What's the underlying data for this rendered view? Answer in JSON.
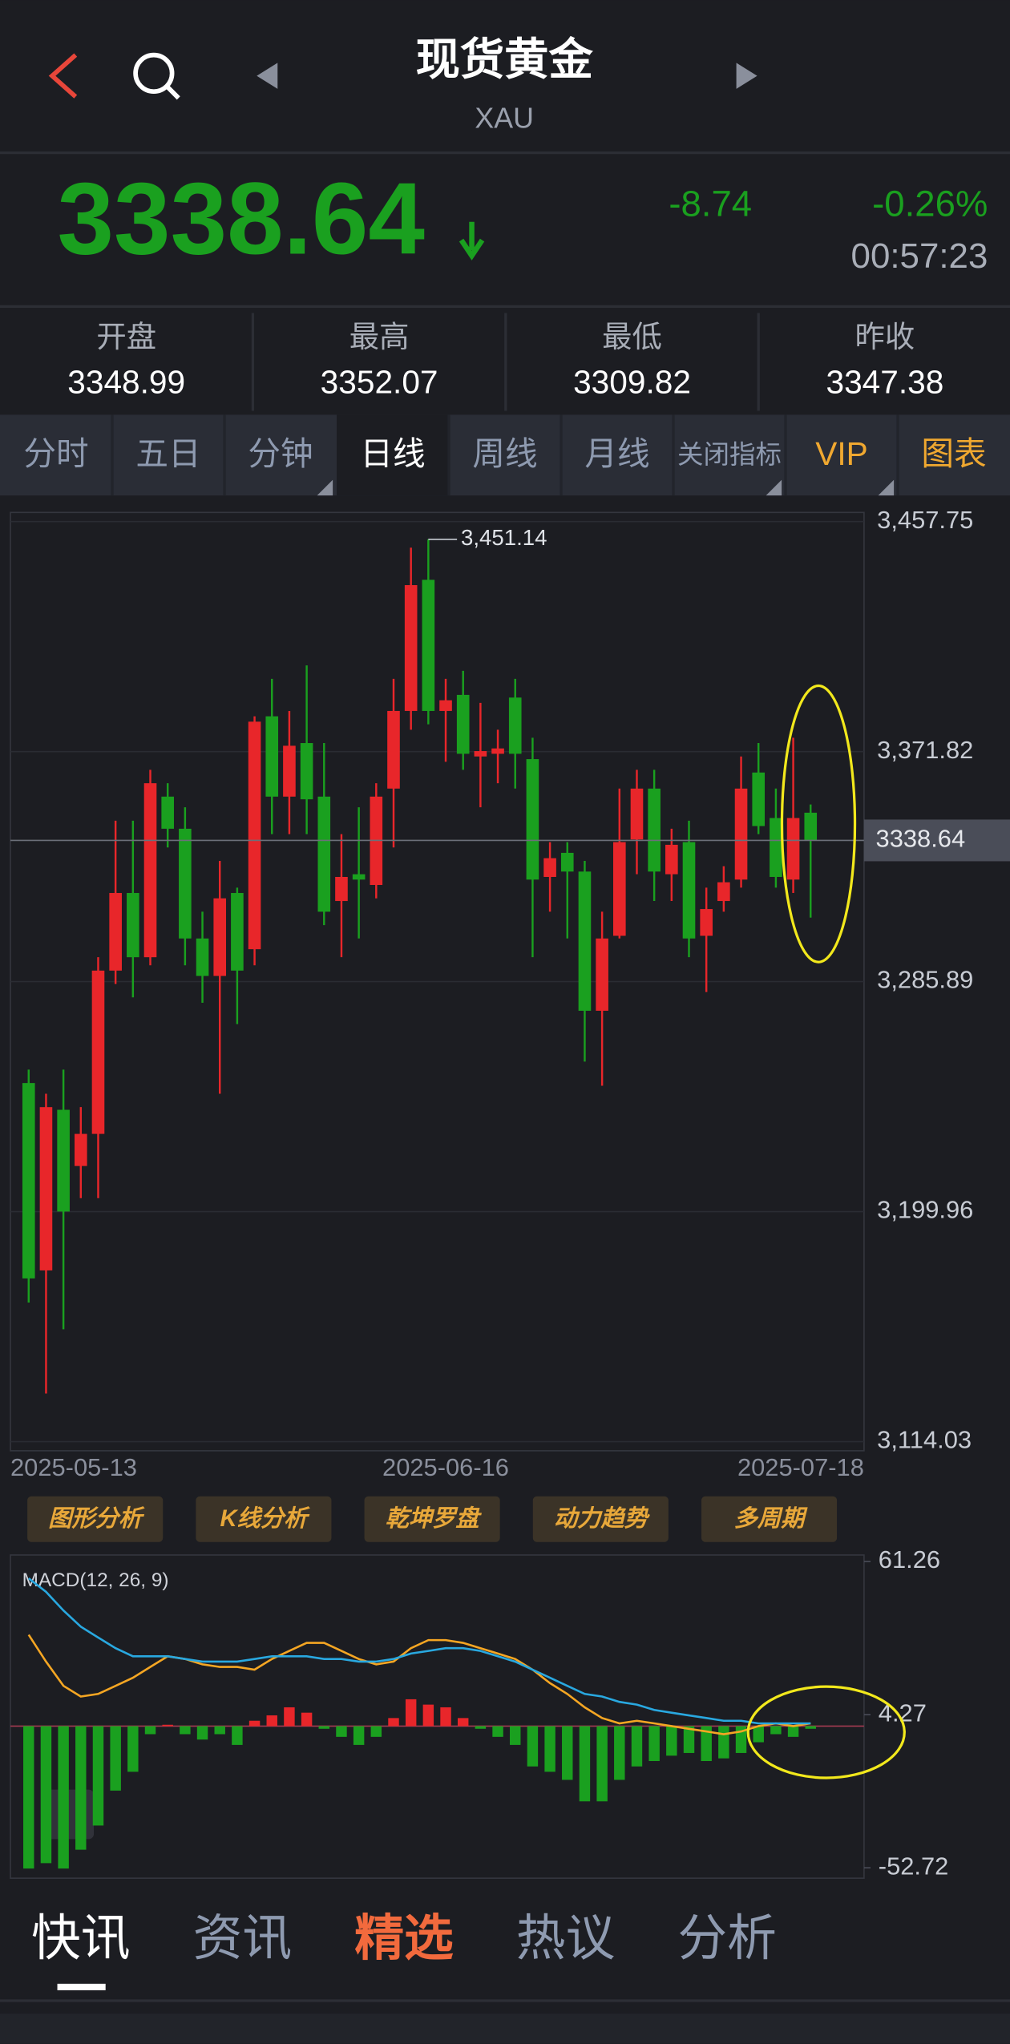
{
  "header": {
    "title": "现货黄金",
    "subtitle": "XAU"
  },
  "quote": {
    "price": "3338.64",
    "change": "-8.74",
    "change_pct": "-0.26%",
    "time": "00:57:23"
  },
  "stats": [
    {
      "label": "开盘",
      "value": "3348.99"
    },
    {
      "label": "最高",
      "value": "3352.07"
    },
    {
      "label": "最低",
      "value": "3309.82"
    },
    {
      "label": "昨收",
      "value": "3347.38"
    }
  ],
  "period_tabs": [
    "分时",
    "五日",
    "分钟",
    "日线",
    "周线",
    "月线",
    "关闭指标",
    "VIP",
    "图表"
  ],
  "chart_data": [
    {
      "type": "candlestick",
      "up_color": "#e8262a",
      "down_color": "#1aa01f",
      "categories": [
        "2025-05-13",
        null,
        null,
        null,
        null,
        null,
        null,
        null,
        null,
        null,
        null,
        null,
        null,
        null,
        null,
        null,
        null,
        null,
        null,
        null,
        null,
        null,
        null,
        null,
        "2025-06-16",
        null,
        null,
        null,
        null,
        null,
        null,
        null,
        null,
        null,
        null,
        null,
        null,
        null,
        null,
        null,
        null,
        null,
        null,
        null,
        null,
        "2025-07-18"
      ],
      "open": [
        3248,
        3178,
        3238,
        3217,
        3229,
        3290,
        3319,
        3295,
        3355,
        3343,
        3302,
        3288,
        3319,
        3298,
        3385,
        3355,
        3375,
        3355,
        3316,
        3326,
        3322,
        3358,
        3387,
        3436,
        3387,
        3393,
        3370,
        3371,
        3392,
        3369,
        3325,
        3334,
        3327,
        3275,
        3303,
        3339,
        3358,
        3326,
        3338,
        3303,
        3316,
        3324,
        3364,
        3347,
        3324,
        3348.99
      ],
      "high": [
        3253,
        3244,
        3253,
        3239,
        3295,
        3346,
        3346,
        3365,
        3360,
        3351,
        3312,
        3331,
        3321,
        3385,
        3399,
        3387,
        3404,
        3375,
        3341,
        3351,
        3360,
        3399,
        3448,
        3451.14,
        3399,
        3402,
        3390,
        3380,
        3399,
        3377,
        3338,
        3338,
        3331,
        3312,
        3358,
        3365,
        3365,
        3343,
        3346,
        3321,
        3329,
        3370,
        3375,
        3358,
        3377,
        3352.07
      ],
      "low": [
        3166,
        3132,
        3156,
        3205,
        3205,
        3285,
        3280,
        3292,
        3336,
        3292,
        3278,
        3244,
        3270,
        3292,
        3341,
        3341,
        3341,
        3307,
        3295,
        3302,
        3317,
        3336,
        3380,
        3382,
        3368,
        3365,
        3351,
        3360,
        3358,
        3295,
        3312,
        3302,
        3256,
        3247,
        3302,
        3326,
        3316,
        3316,
        3295,
        3282,
        3312,
        3321,
        3341,
        3321,
        3319,
        3309.82
      ],
      "close": [
        3175,
        3239,
        3200,
        3229,
        3290,
        3319,
        3295,
        3360,
        3343,
        3302,
        3288,
        3317,
        3290,
        3383,
        3355,
        3374,
        3354,
        3312,
        3325,
        3324,
        3355,
        3387,
        3434,
        3387,
        3391,
        3371,
        3372,
        3373,
        3371,
        3324,
        3332,
        3327,
        3275,
        3302,
        3338,
        3358,
        3327,
        3337,
        3302,
        3313,
        3323,
        3358,
        3344,
        3325,
        3347,
        3338.64
      ],
      "high_labels": [
        null,
        null,
        null,
        null,
        null,
        null,
        null,
        null,
        null,
        null,
        null,
        null,
        null,
        null,
        null,
        null,
        null,
        null,
        null,
        null,
        null,
        null,
        null,
        "3,451.14",
        null,
        null,
        null,
        null,
        null,
        null,
        null,
        null,
        null,
        null,
        null,
        null,
        null,
        null,
        null,
        null,
        null,
        null,
        null,
        null,
        null,
        null
      ],
      "ylim": [
        3114.03,
        3457.75
      ],
      "yticks": [
        {
          "value": 3457.75,
          "label": "3,457.75"
        },
        {
          "value": 3371.82,
          "label": "3,371.82"
        },
        {
          "value": 3285.89,
          "label": "3,285.89"
        },
        {
          "value": 3199.96,
          "label": "3,199.96"
        },
        {
          "value": 3114.03,
          "label": "3,114.03"
        }
      ],
      "grid": true
    },
    {
      "type": "macd",
      "title": "MACD(12, 26, 9)",
      "up_color": "#e8262a",
      "down_color": "#1aa01f",
      "values": [
        -53,
        -51,
        -53,
        -46,
        -37,
        -24,
        -17,
        -3,
        0.5,
        -3,
        -5,
        -3,
        -7,
        2,
        4,
        7,
        5,
        -1,
        -4,
        -7,
        -4,
        3,
        10,
        8,
        7,
        3,
        -1,
        -4,
        -7,
        -15,
        -17,
        -20,
        -28,
        -28,
        -20,
        -15,
        -13,
        -11,
        -10,
        -13,
        -12,
        -10,
        -6,
        -3,
        -4,
        -1
      ],
      "series": [
        {
          "color": "#f5a623",
          "values": [
            34,
            24,
            15,
            11,
            12,
            15,
            18,
            22,
            26,
            25,
            23,
            22,
            22,
            21,
            25,
            28,
            31,
            31,
            28,
            25,
            23,
            24,
            29,
            32,
            32,
            31,
            29,
            27,
            25,
            21,
            16,
            12,
            7,
            3,
            1,
            2,
            1,
            0,
            -1,
            -2,
            -3,
            -2,
            0,
            1,
            0,
            1
          ]
        },
        {
          "color": "#29a8e0",
          "values": [
            55,
            50,
            43,
            37,
            33,
            29,
            26,
            26,
            26,
            25,
            24,
            24,
            24,
            25,
            26,
            26,
            26,
            25,
            25,
            24,
            24,
            25,
            27,
            28,
            29,
            29,
            28,
            26,
            24,
            21,
            18,
            15,
            12,
            11,
            9,
            8,
            6,
            5,
            4,
            3,
            2,
            2,
            1,
            1,
            1,
            1
          ]
        }
      ],
      "ylim": [
        -52.72,
        61.26
      ],
      "yticks": [
        61.26,
        4.27,
        -52.72
      ]
    }
  ],
  "tools": [
    "图形分析",
    "K线分析",
    "乾坤罗盘",
    "动力趋势",
    "多周期"
  ],
  "news_tabs": [
    "快讯",
    "资讯",
    "精选",
    "热议",
    "分析"
  ]
}
